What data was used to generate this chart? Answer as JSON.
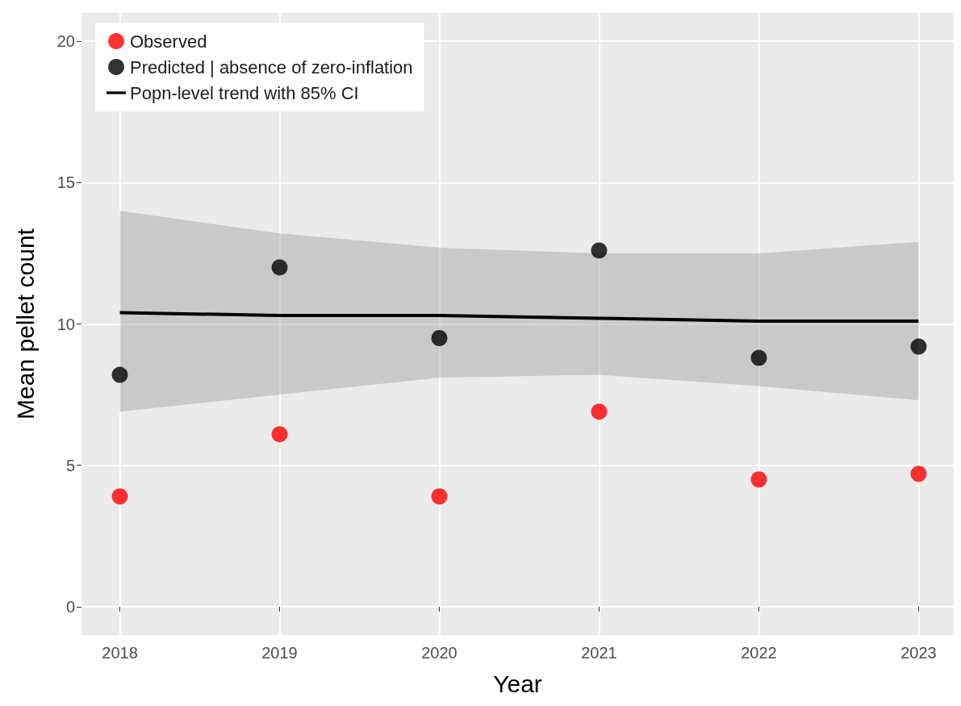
{
  "chart_data": {
    "type": "scatter",
    "xlabel": "Year",
    "ylabel": "Mean pellet count",
    "x": [
      2018,
      2019,
      2020,
      2021,
      2022,
      2023
    ],
    "series": [
      {
        "name": "Observed",
        "type": "scatter",
        "marker": "circle",
        "color": "#ff0000",
        "values": [
          3.9,
          6.1,
          3.9,
          6.9,
          4.5,
          4.7
        ]
      },
      {
        "name": "Predicted | absence of zero-inflation",
        "type": "scatter",
        "marker": "circle",
        "color": "#000000",
        "values": [
          8.2,
          12.0,
          9.5,
          12.6,
          8.8,
          9.2
        ]
      },
      {
        "name": "Popn-level trend with 85% CI",
        "type": "line",
        "marker": "none",
        "color": "#000000",
        "values": [
          10.4,
          10.3,
          10.3,
          10.2,
          10.1,
          10.1
        ],
        "lower": [
          6.9,
          7.5,
          8.1,
          8.2,
          7.8,
          7.3
        ],
        "upper": [
          14.0,
          13.2,
          12.7,
          12.5,
          12.5,
          12.9
        ]
      }
    ],
    "xlim": [
      2017.76,
      2023.22
    ],
    "xticks": [
      2018,
      2019,
      2020,
      2021,
      2022,
      2023
    ],
    "ylim": [
      -1,
      21
    ],
    "yticks": [
      0,
      5,
      10,
      15,
      20
    ],
    "grid": true,
    "legend": "top left"
  }
}
